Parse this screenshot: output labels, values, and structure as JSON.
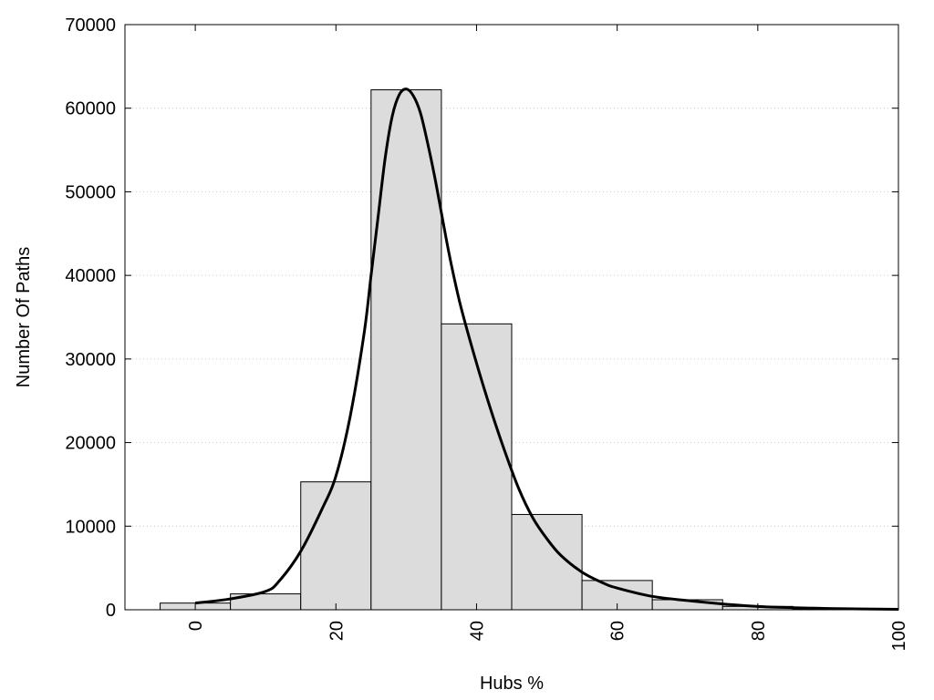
{
  "chart_data": {
    "type": "bar",
    "subtype": "histogram-with-density-curve",
    "xlabel": "Hubs %",
    "ylabel": "Number Of Paths",
    "xlim": [
      -10,
      100
    ],
    "ylim": [
      0,
      70000
    ],
    "x_ticks": [
      0,
      20,
      40,
      60,
      80,
      100
    ],
    "y_ticks": [
      0,
      10000,
      20000,
      30000,
      40000,
      50000,
      60000,
      70000
    ],
    "x_tick_labels": [
      "0",
      "20",
      "40",
      "60",
      "80",
      "100"
    ],
    "y_tick_labels": [
      "0",
      "10000",
      "20000",
      "30000",
      "40000",
      "50000",
      "60000",
      "70000"
    ],
    "grid": "horizontal dotted",
    "bars": [
      {
        "x_start": -5,
        "x_end": 5,
        "value": 800
      },
      {
        "x_start": 5,
        "x_end": 15,
        "value": 1900
      },
      {
        "x_start": 15,
        "x_end": 25,
        "value": 15300
      },
      {
        "x_start": 25,
        "x_end": 35,
        "value": 62200
      },
      {
        "x_start": 35,
        "x_end": 45,
        "value": 34200
      },
      {
        "x_start": 45,
        "x_end": 55,
        "value": 11400
      },
      {
        "x_start": 55,
        "x_end": 65,
        "value": 3500
      },
      {
        "x_start": 65,
        "x_end": 75,
        "value": 1200
      },
      {
        "x_start": 75,
        "x_end": 85,
        "value": 400
      },
      {
        "x_start": 85,
        "x_end": 95,
        "value": 100
      },
      {
        "x_start": 95,
        "x_end": 100,
        "value": 50
      }
    ],
    "curve": {
      "x": [
        0,
        5,
        10,
        12,
        15,
        18,
        20,
        22,
        24,
        25,
        26,
        27,
        28,
        29,
        30,
        31,
        32,
        33,
        34,
        35,
        36,
        37,
        38,
        40,
        42,
        44,
        46,
        48,
        50,
        52,
        55,
        58,
        60,
        65,
        70,
        75,
        80,
        85,
        90,
        95,
        100
      ],
      "y": [
        800,
        1300,
        2200,
        3500,
        7000,
        12000,
        16000,
        23000,
        33000,
        40000,
        47000,
        54000,
        59000,
        61600,
        62300,
        61500,
        59500,
        56000,
        52000,
        47500,
        43000,
        39000,
        35500,
        29500,
        24000,
        19000,
        14500,
        11000,
        8500,
        6500,
        4500,
        3200,
        2600,
        1600,
        1100,
        700,
        400,
        250,
        150,
        100,
        50
      ]
    },
    "colors": {
      "bar_fill": "#dcdcdc",
      "bar_stroke": "#000000",
      "curve": "#000000",
      "grid": "#c8c8c8"
    }
  }
}
